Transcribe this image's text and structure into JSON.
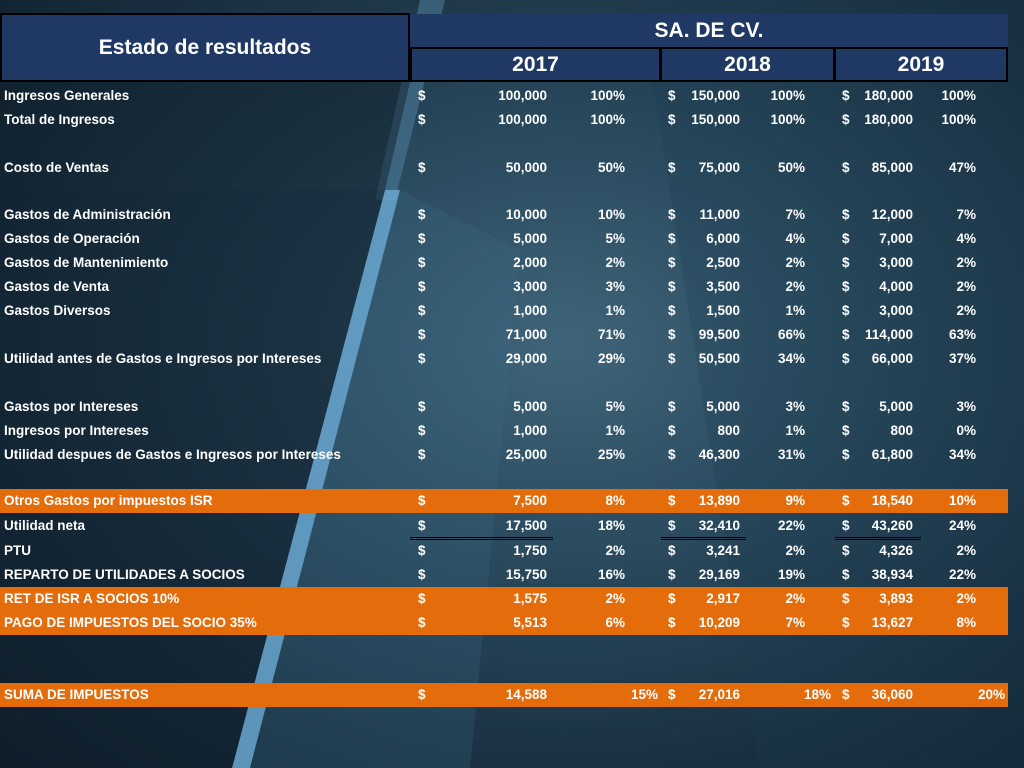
{
  "header": {
    "title": "Estado de resultados",
    "company": "SA. DE CV.",
    "years": [
      "2017",
      "2018",
      "2019"
    ]
  },
  "colors": {
    "header_fill": "#1f3864",
    "highlight_fill": "#e46c0a"
  },
  "rows": [
    {
      "label": "Ingresos Generales",
      "highlight": false,
      "values": [
        {
          "cur": "$",
          "amt": "100,000",
          "pct": "100%"
        },
        {
          "cur": "$",
          "amt": "150,000",
          "pct": "100%"
        },
        {
          "cur": "$",
          "amt": "180,000",
          "pct": "100%"
        }
      ]
    },
    {
      "label": "Total de Ingresos",
      "highlight": false,
      "values": [
        {
          "cur": "$",
          "amt": "100,000",
          "pct": "100%"
        },
        {
          "cur": "$",
          "amt": "150,000",
          "pct": "100%"
        },
        {
          "cur": "$",
          "amt": "180,000",
          "pct": "100%"
        }
      ]
    },
    {
      "label": "",
      "highlight": false,
      "values": []
    },
    {
      "label": "Costo de Ventas",
      "highlight": false,
      "values": [
        {
          "cur": "$",
          "amt": "50,000",
          "pct": "50%"
        },
        {
          "cur": "$",
          "amt": "75,000",
          "pct": "50%"
        },
        {
          "cur": "$",
          "amt": "85,000",
          "pct": "47%"
        }
      ]
    },
    {
      "label": "",
      "highlight": false,
      "values": []
    },
    {
      "label": "Gastos de Administración",
      "highlight": false,
      "values": [
        {
          "cur": "$",
          "amt": "10,000",
          "pct": "10%"
        },
        {
          "cur": "$",
          "amt": "11,000",
          "pct": "7%"
        },
        {
          "cur": "$",
          "amt": "12,000",
          "pct": "7%"
        }
      ]
    },
    {
      "label": "Gastos de Operación",
      "highlight": false,
      "values": [
        {
          "cur": "$",
          "amt": "5,000",
          "pct": "5%"
        },
        {
          "cur": "$",
          "amt": "6,000",
          "pct": "4%"
        },
        {
          "cur": "$",
          "amt": "7,000",
          "pct": "4%"
        }
      ]
    },
    {
      "label": "Gastos de Mantenimiento",
      "highlight": false,
      "values": [
        {
          "cur": "$",
          "amt": "2,000",
          "pct": "2%"
        },
        {
          "cur": "$",
          "amt": "2,500",
          "pct": "2%"
        },
        {
          "cur": "$",
          "amt": "3,000",
          "pct": "2%"
        }
      ]
    },
    {
      "label": "Gastos de Venta",
      "highlight": false,
      "values": [
        {
          "cur": "$",
          "amt": "3,000",
          "pct": "3%"
        },
        {
          "cur": "$",
          "amt": "3,500",
          "pct": "2%"
        },
        {
          "cur": "$",
          "amt": "4,000",
          "pct": "2%"
        }
      ]
    },
    {
      "label": "Gastos Diversos",
      "highlight": false,
      "values": [
        {
          "cur": "$",
          "amt": "1,000",
          "pct": "1%"
        },
        {
          "cur": "$",
          "amt": "1,500",
          "pct": "1%"
        },
        {
          "cur": "$",
          "amt": "3,000",
          "pct": "2%"
        }
      ]
    },
    {
      "label": "",
      "highlight": false,
      "values": [
        {
          "cur": "$",
          "amt": "71,000",
          "pct": "71%"
        },
        {
          "cur": "$",
          "amt": "99,500",
          "pct": "66%"
        },
        {
          "cur": "$",
          "amt": "114,000",
          "pct": "63%"
        }
      ]
    },
    {
      "label": "Utilidad antes de Gastos e Ingresos por Intereses",
      "highlight": false,
      "values": [
        {
          "cur": "$",
          "amt": "29,000",
          "pct": "29%"
        },
        {
          "cur": "$",
          "amt": "50,500",
          "pct": "34%"
        },
        {
          "cur": "$",
          "amt": "66,000",
          "pct": "37%"
        }
      ]
    },
    {
      "label": "",
      "highlight": false,
      "values": []
    },
    {
      "label": "Gastos por Intereses",
      "highlight": false,
      "values": [
        {
          "cur": "$",
          "amt": "5,000",
          "pct": "5%"
        },
        {
          "cur": "$",
          "amt": "5,000",
          "pct": "3%"
        },
        {
          "cur": "$",
          "amt": "5,000",
          "pct": "3%"
        }
      ]
    },
    {
      "label": "Ingresos por Intereses",
      "highlight": false,
      "values": [
        {
          "cur": "$",
          "amt": "1,000",
          "pct": "1%"
        },
        {
          "cur": "$",
          "amt": "800",
          "pct": "1%"
        },
        {
          "cur": "$",
          "amt": "800",
          "pct": "0%"
        }
      ]
    },
    {
      "label": "Utilidad despues de Gastos e Ingresos por Intereses",
      "highlight": false,
      "values": [
        {
          "cur": "$",
          "amt": "25,000",
          "pct": "25%"
        },
        {
          "cur": "$",
          "amt": "46,300",
          "pct": "31%"
        },
        {
          "cur": "$",
          "amt": "61,800",
          "pct": "34%"
        }
      ]
    },
    {
      "label": "",
      "highlight": false,
      "values": []
    },
    {
      "label": "Otros Gastos por impuestos ISR",
      "highlight": true,
      "values": [
        {
          "cur": "$",
          "amt": "7,500",
          "pct": "8%"
        },
        {
          "cur": "$",
          "amt": "13,890",
          "pct": "9%"
        },
        {
          "cur": "$",
          "amt": "18,540",
          "pct": "10%"
        }
      ]
    },
    {
      "label": "Utilidad neta",
      "highlight": false,
      "underline": true,
      "values": [
        {
          "cur": "$",
          "amt": "17,500",
          "pct": "18%"
        },
        {
          "cur": "$",
          "amt": "32,410",
          "pct": "22%"
        },
        {
          "cur": "$",
          "amt": "43,260",
          "pct": "24%"
        }
      ]
    },
    {
      "label": "PTU",
      "highlight": false,
      "values": [
        {
          "cur": "$",
          "amt": "1,750",
          "pct": "2%"
        },
        {
          "cur": "$",
          "amt": "3,241",
          "pct": "2%"
        },
        {
          "cur": "$",
          "amt": "4,326",
          "pct": "2%"
        }
      ]
    },
    {
      "label": "REPARTO DE UTILIDADES A SOCIOS",
      "highlight": false,
      "values": [
        {
          "cur": "$",
          "amt": "15,750",
          "pct": "16%"
        },
        {
          "cur": "$",
          "amt": "29,169",
          "pct": "19%"
        },
        {
          "cur": "$",
          "amt": "38,934",
          "pct": "22%"
        }
      ]
    },
    {
      "label": "RET DE ISR A SOCIOS 10%",
      "highlight": true,
      "values": [
        {
          "cur": "$",
          "amt": "1,575",
          "pct": "2%"
        },
        {
          "cur": "$",
          "amt": "2,917",
          "pct": "2%"
        },
        {
          "cur": "$",
          "amt": "3,893",
          "pct": "2%"
        }
      ]
    },
    {
      "label": "PAGO DE IMPUESTOS DEL SOCIO 35%",
      "highlight": true,
      "values": [
        {
          "cur": "$",
          "amt": "5,513",
          "pct": "6%"
        },
        {
          "cur": "$",
          "amt": "10,209",
          "pct": "7%"
        },
        {
          "cur": "$",
          "amt": "13,627",
          "pct": "8%"
        }
      ]
    },
    {
      "label": "",
      "highlight": false,
      "values": []
    },
    {
      "label": "",
      "highlight": false,
      "values": []
    },
    {
      "label": "SUMA DE IMPUESTOS",
      "highlight": true,
      "wide_pct": true,
      "values": [
        {
          "cur": "$",
          "amt": "14,588",
          "pct": "15%"
        },
        {
          "cur": "$",
          "amt": "27,016",
          "pct": "18%"
        },
        {
          "cur": "$",
          "amt": "36,060",
          "pct": "20%"
        }
      ]
    }
  ]
}
